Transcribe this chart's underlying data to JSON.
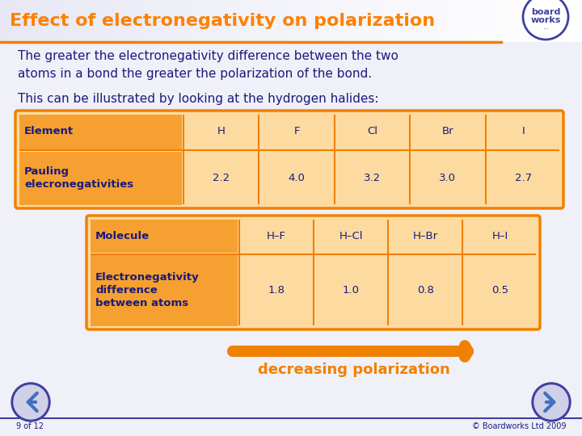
{
  "title": "Effect of electronegativity on polarization",
  "header_gradient_left": "#E8E8F0",
  "header_gradient_right": "#FFFFFF",
  "title_color": "#FF8000",
  "bg_color": "#F0F0F8",
  "body_text1": "The greater the electronegativity difference between the two\natoms in a bond the greater the polarization of the bond.",
  "body_text2": "This can be illustrated by looking at the hydrogen halides:",
  "table1_header_bg": "#F5A030",
  "table1_cell_bg": "#FDDBA0",
  "table1_border": "#F08000",
  "table1_rows": [
    [
      "Element",
      "H",
      "F",
      "Cl",
      "Br",
      "I"
    ],
    [
      "Pauling\nelecronegativities",
      "2.2",
      "4.0",
      "3.2",
      "3.0",
      "2.7"
    ]
  ],
  "table2_header_bg": "#F5A030",
  "table2_cell_bg": "#FDDBA0",
  "table2_border": "#F08000",
  "table2_rows": [
    [
      "Molecule",
      "H–F",
      "H–Cl",
      "H–Br",
      "H–I"
    ],
    [
      "Electronegativity\ndifference\nbetween atoms",
      "1.8",
      "1.0",
      "0.8",
      "0.5"
    ]
  ],
  "arrow_color": "#F08000",
  "arrow_label": "decreasing polarization",
  "arrow_label_color": "#F08000",
  "footer_line_color": "#4040A0",
  "footer_text": "9 of 12",
  "footer_right": "© Boardworks Ltd 2009",
  "text_color": "#1A1A7E",
  "nav_circle_fill": "#D0D0E8",
  "nav_circle_border": "#4040A0",
  "nav_arrow_color": "#4070C0",
  "logo_circle_border": "#4040A0",
  "logo_text_color": "#4040A0",
  "orange_line_color": "#F08000"
}
